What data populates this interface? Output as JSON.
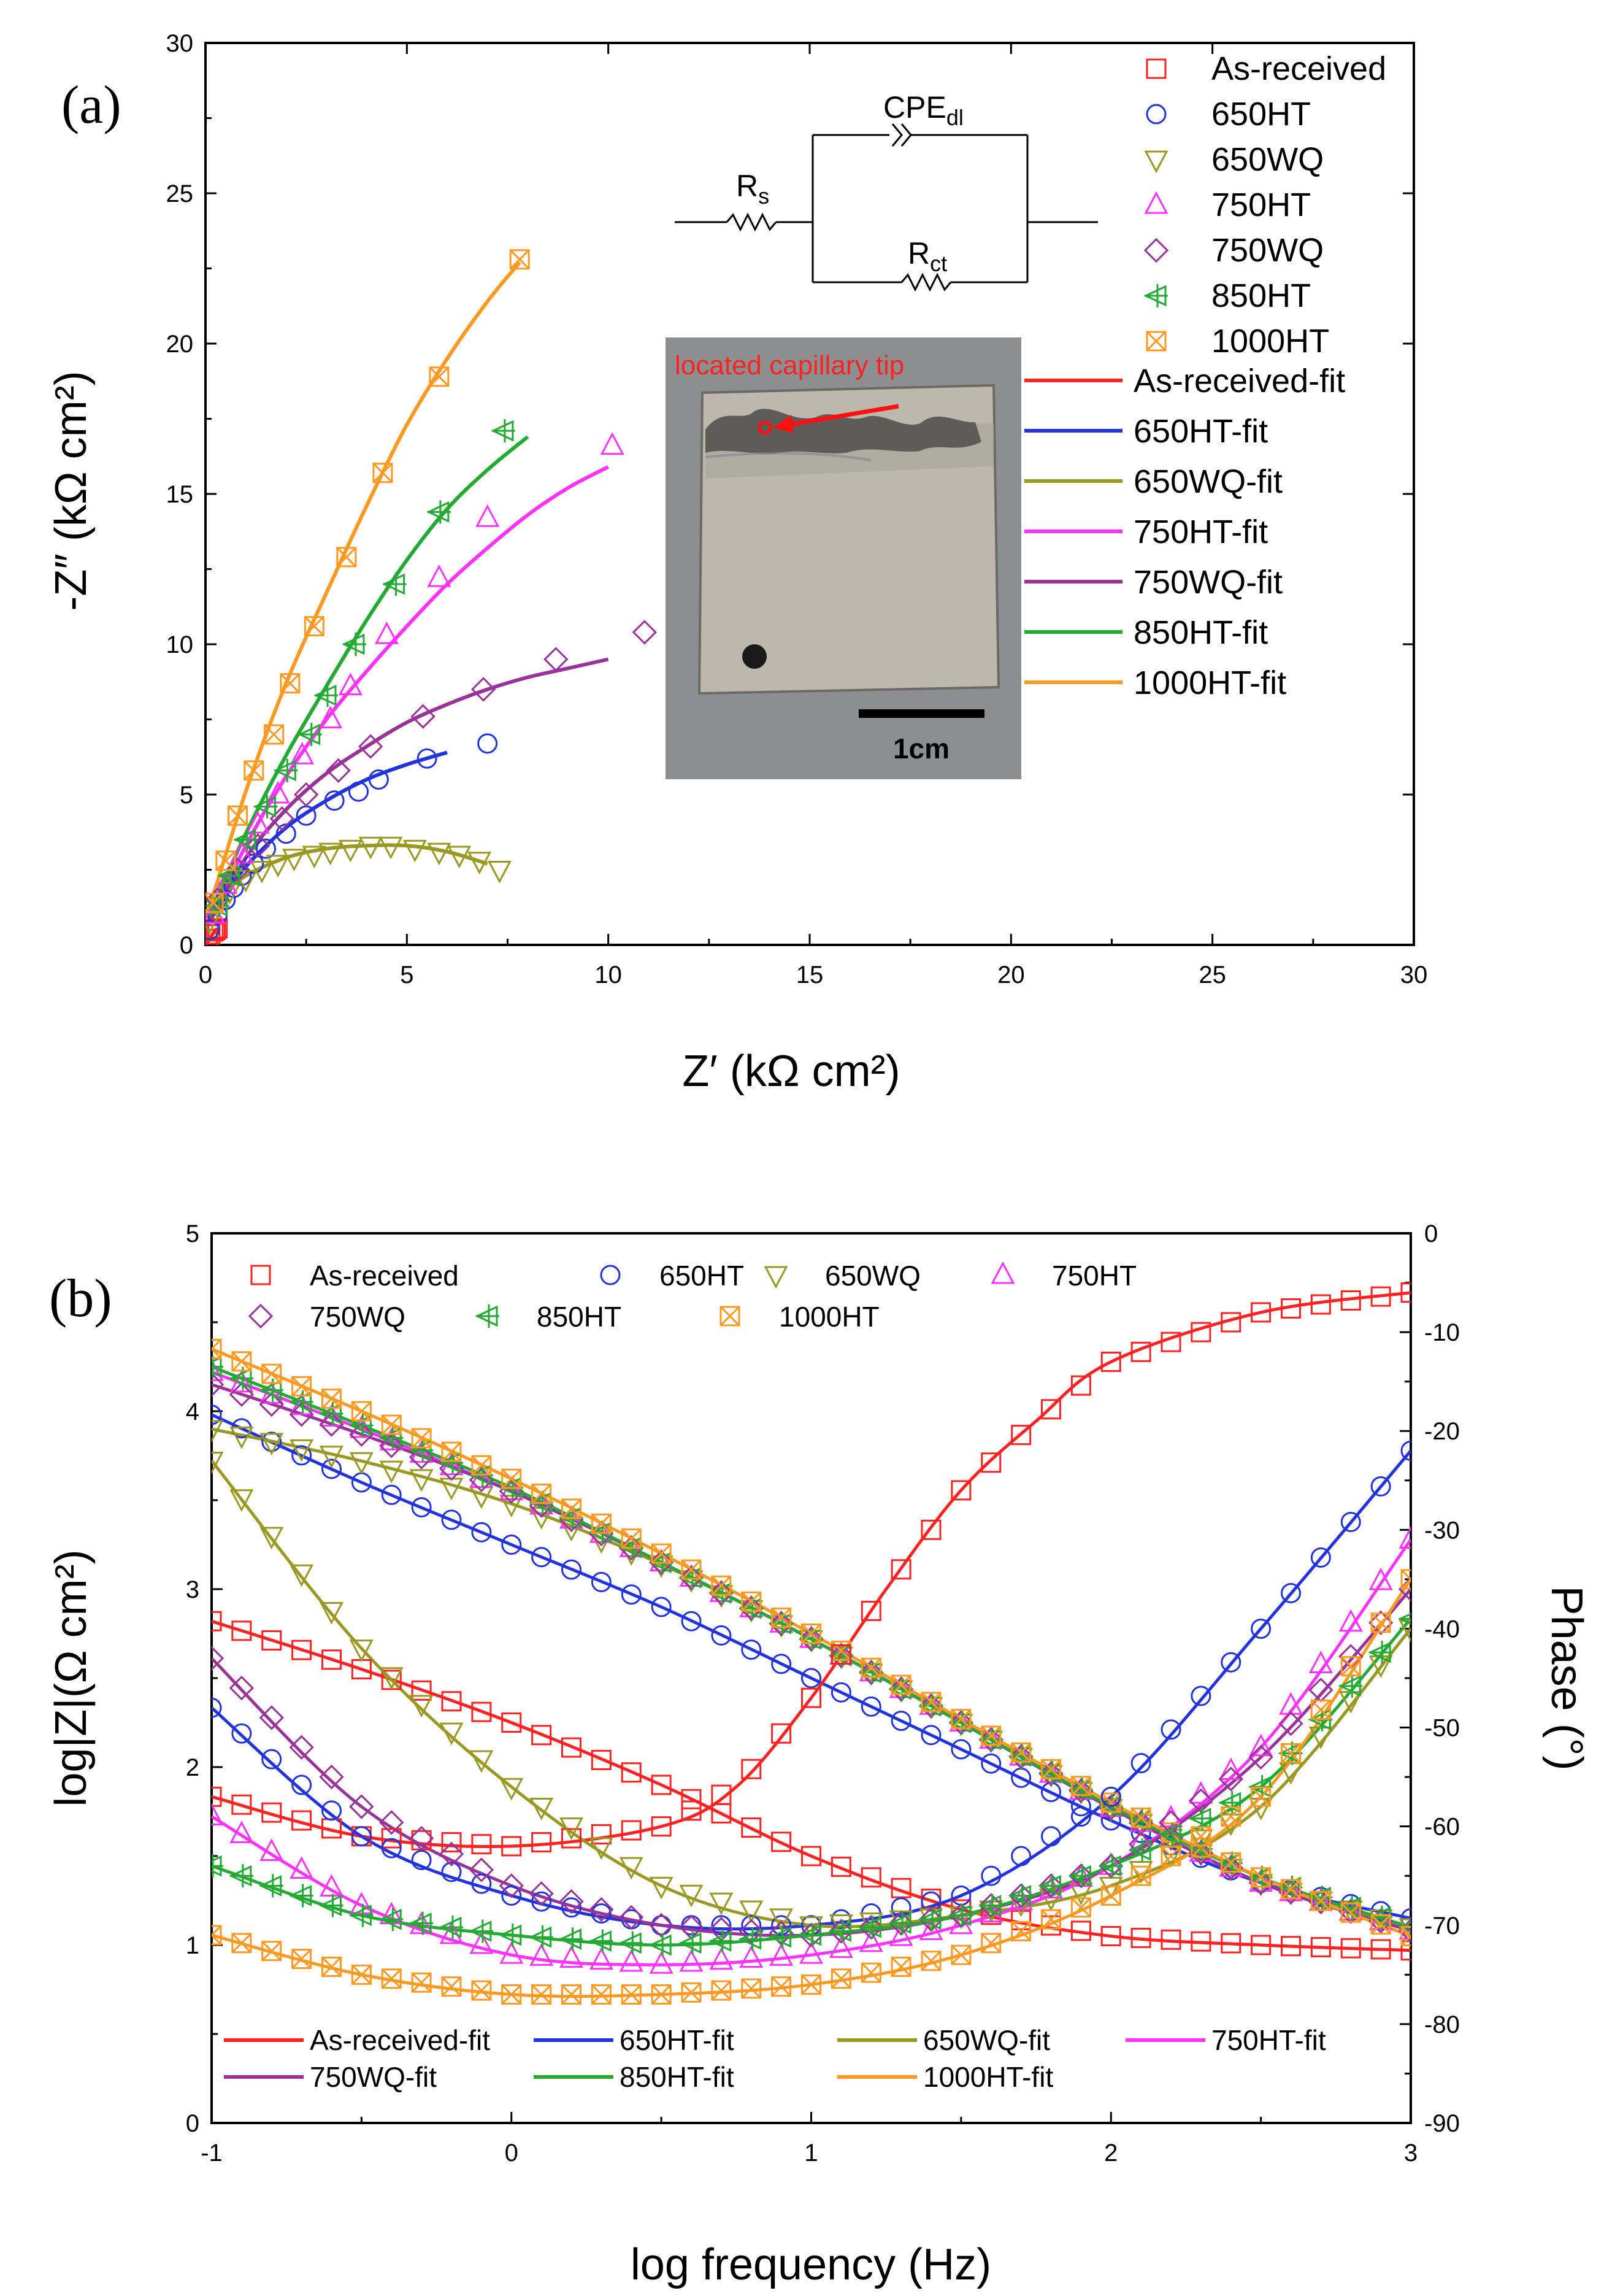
{
  "colors": {
    "As-received": "#ff2222",
    "650HT": "#2233dd",
    "650WQ": "#999922",
    "750HT": "#ff33ff",
    "750WQ": "#993399",
    "850HT": "#22aa33",
    "1000HT": "#ff9922"
  },
  "chart_data": [
    {
      "type": "scatter",
      "panel_label": "(a)",
      "title": "",
      "xlabel": "Z′ (kΩ cm²)",
      "ylabel": "-Z″ (kΩ cm²)",
      "xlim": [
        0,
        30
      ],
      "ylim": [
        0,
        30
      ],
      "xticks": [
        "0",
        "5",
        "10",
        "15",
        "20",
        "25",
        "30"
      ],
      "yticks": [
        "0",
        "5",
        "10",
        "15",
        "20",
        "25",
        "30"
      ],
      "legend_markers": [
        "As-received",
        "650HT",
        "650WQ",
        "750HT",
        "750WQ",
        "850HT",
        "1000HT"
      ],
      "legend_fits": [
        "As-received-fit",
        "650HT-fit",
        "650WQ-fit",
        "750HT-fit",
        "750WQ-fit",
        "850HT-fit",
        "1000HT-fit"
      ],
      "circuit_labels": {
        "rs_main": "R",
        "rs_sub": "s",
        "cpe_main": "CPE",
        "cpe_sub": "dl",
        "rct_main": "R",
        "rct_sub": "ct"
      },
      "inset_annotation": "located capillary tip",
      "inset_scalebar": "1cm",
      "series": [
        {
          "name": "As-received",
          "marker": "square",
          "x": [
            0.05,
            0.12,
            0.2,
            0.25,
            0.3
          ],
          "y": [
            0.2,
            0.35,
            0.45,
            0.5,
            0.55
          ],
          "fit_x": [
            0.0,
            0.1,
            0.2,
            0.3
          ],
          "fit_y": [
            0.0,
            0.2,
            0.4,
            0.55
          ]
        },
        {
          "name": "650HT",
          "marker": "circle",
          "x": [
            0.1,
            0.3,
            0.5,
            0.7,
            0.9,
            1.2,
            1.5,
            2.0,
            2.5,
            3.2,
            3.8,
            4.3,
            5.5,
            7.0
          ],
          "y": [
            0.5,
            1.0,
            1.5,
            1.9,
            2.3,
            2.7,
            3.2,
            3.7,
            4.3,
            4.8,
            5.1,
            5.5,
            6.2,
            6.7
          ],
          "fit_x": [
            0,
            0.5,
            1,
            2,
            3,
            4,
            5,
            6
          ],
          "fit_y": [
            0.6,
            1.6,
            2.6,
            3.9,
            4.8,
            5.5,
            6.0,
            6.4
          ]
        },
        {
          "name": "650WQ",
          "marker": "triangle-down",
          "x": [
            0.1,
            0.3,
            0.6,
            1.0,
            1.4,
            1.8,
            2.2,
            2.7,
            3.1,
            3.6,
            4.1,
            4.6,
            5.2,
            5.8,
            6.3,
            6.8,
            7.3
          ],
          "y": [
            0.8,
            1.3,
            1.8,
            2.2,
            2.5,
            2.7,
            2.9,
            3.0,
            3.1,
            3.2,
            3.3,
            3.3,
            3.2,
            3.1,
            3.0,
            2.8,
            2.5
          ],
          "fit_x": [
            0,
            0.5,
            1,
            2,
            3,
            4,
            5,
            6,
            7
          ],
          "fit_y": [
            0.6,
            1.7,
            2.3,
            2.9,
            3.2,
            3.3,
            3.3,
            3.1,
            2.7
          ]
        },
        {
          "name": "750HT",
          "marker": "triangle-up",
          "x": [
            0.2,
            0.5,
            0.9,
            1.3,
            1.8,
            2.4,
            3.1,
            3.6,
            4.5,
            5.8,
            7.0,
            10.1
          ],
          "y": [
            1.0,
            2.0,
            3.0,
            4.0,
            5.0,
            6.3,
            7.5,
            8.6,
            10.3,
            12.2,
            14.2,
            16.6
          ],
          "fit_x": [
            0,
            1,
            2,
            3,
            4,
            5,
            6,
            7,
            8,
            9,
            10
          ],
          "fit_y": [
            0.5,
            3.3,
            5.6,
            7.5,
            9.1,
            10.6,
            12.0,
            13.2,
            14.3,
            15.2,
            15.9
          ]
        },
        {
          "name": "750WQ",
          "marker": "diamond",
          "x": [
            0.3,
            0.8,
            1.3,
            1.9,
            2.5,
            3.3,
            4.1,
            5.4,
            6.9,
            8.7,
            10.9
          ],
          "y": [
            1.5,
            2.5,
            3.3,
            4.2,
            5.0,
            5.8,
            6.6,
            7.6,
            8.5,
            9.5,
            10.4
          ],
          "fit_x": [
            0,
            1,
            2,
            3,
            4,
            5,
            6,
            7,
            8,
            9,
            10
          ],
          "fit_y": [
            0.6,
            2.9,
            4.5,
            5.7,
            6.6,
            7.4,
            8.0,
            8.5,
            8.9,
            9.2,
            9.5
          ]
        },
        {
          "name": "850HT",
          "marker": "triangle-left-cross",
          "x": [
            0.3,
            0.6,
            1.0,
            1.5,
            2.0,
            2.6,
            3.0,
            3.7,
            4.7,
            5.8,
            7.4
          ],
          "y": [
            1.3,
            2.3,
            3.5,
            4.6,
            5.8,
            7.0,
            8.3,
            10.0,
            12.0,
            14.4,
            17.1
          ],
          "fit_x": [
            0,
            1,
            2,
            3,
            4,
            5,
            6,
            7,
            8
          ],
          "fit_y": [
            0.7,
            3.7,
            6.3,
            8.6,
            10.8,
            12.8,
            14.5,
            15.8,
            16.9
          ]
        },
        {
          "name": "1000HT",
          "marker": "square-x",
          "x": [
            0.2,
            0.5,
            0.8,
            1.2,
            1.7,
            2.1,
            2.7,
            3.5,
            4.4,
            5.8,
            7.8
          ],
          "y": [
            1.4,
            2.8,
            4.3,
            5.8,
            7.0,
            8.7,
            10.6,
            12.9,
            15.7,
            18.9,
            22.8
          ],
          "fit_x": [
            0,
            1,
            2,
            3,
            4,
            5,
            6,
            7,
            7.8
          ],
          "fit_y": [
            0.8,
            5.1,
            8.7,
            11.7,
            14.6,
            17.3,
            19.5,
            21.4,
            22.7
          ]
        }
      ]
    },
    {
      "type": "line",
      "panel_label": "(b)",
      "title": "",
      "xlabel": "log frequency (Hz)",
      "ylabel": "log|Z|(Ω cm²)",
      "ylabel_right": "Phase (°)",
      "xlim": [
        -1,
        3
      ],
      "ylim": [
        0,
        5
      ],
      "ylim_right": [
        -90,
        0
      ],
      "xticks": [
        "-1",
        "0",
        "1",
        "2",
        "3"
      ],
      "yticks": [
        "0",
        "1",
        "2",
        "3",
        "4",
        "5"
      ],
      "yticks_right": [
        "0",
        "-10",
        "-20",
        "-30",
        "-40",
        "-50",
        "-60",
        "-70",
        "-80",
        "-90"
      ],
      "legend_markers": [
        "As-received",
        "650HT",
        "650WQ",
        "750HT",
        "750WQ",
        "850HT",
        "1000HT"
      ],
      "legend_fits": [
        "As-received-fit",
        "650HT-fit",
        "650WQ-fit",
        "750HT-fit",
        "750WQ-fit",
        "850HT-fit",
        "1000HT-fit"
      ],
      "series_magnitude": [
        {
          "name": "As-received",
          "logf": [
            -1,
            -0.5,
            0,
            0.5,
            1,
            1.5,
            2,
            2.5,
            3
          ],
          "logZ": [
            2.82,
            2.55,
            2.25,
            1.9,
            1.5,
            1.2,
            1.05,
            1.0,
            0.97
          ]
        },
        {
          "name": "650HT",
          "logf": [
            -1,
            -0.5,
            0,
            0.5,
            1,
            1.5,
            2,
            2.5,
            3
          ],
          "logZ": [
            3.98,
            3.6,
            3.25,
            2.9,
            2.5,
            2.1,
            1.7,
            1.35,
            1.15
          ]
        },
        {
          "name": "650WQ",
          "logf": [
            -1,
            -0.5,
            0,
            0.5,
            1,
            1.5,
            2,
            2.5,
            3
          ],
          "logZ": [
            3.9,
            3.72,
            3.48,
            3.14,
            2.72,
            2.25,
            1.77,
            1.35,
            1.1
          ]
        },
        {
          "name": "750HT",
          "logf": [
            -1,
            -0.5,
            0,
            0.5,
            1,
            1.5,
            2,
            2.5,
            3
          ],
          "logZ": [
            4.22,
            3.9,
            3.55,
            3.15,
            2.72,
            2.25,
            1.77,
            1.35,
            1.08
          ]
        },
        {
          "name": "750WQ",
          "logf": [
            -1,
            -0.5,
            0,
            0.5,
            1,
            1.5,
            2,
            2.5,
            3
          ],
          "logZ": [
            4.15,
            3.87,
            3.55,
            3.15,
            2.72,
            2.25,
            1.77,
            1.35,
            1.08
          ]
        },
        {
          "name": "850HT",
          "logf": [
            -1,
            -0.5,
            0,
            0.5,
            1,
            1.5,
            2,
            2.5,
            3
          ],
          "logZ": [
            4.25,
            3.92,
            3.57,
            3.15,
            2.72,
            2.25,
            1.78,
            1.38,
            1.1
          ]
        },
        {
          "name": "1000HT",
          "logf": [
            -1,
            -0.5,
            0,
            0.5,
            1,
            1.5,
            2,
            2.5,
            3
          ],
          "logZ": [
            4.35,
            4.0,
            3.62,
            3.2,
            2.75,
            2.27,
            1.8,
            1.38,
            1.05
          ]
        }
      ],
      "series_phase": [
        {
          "name": "As-received",
          "logf": [
            -1,
            -0.5,
            0,
            0.5,
            0.75,
            1,
            1.25,
            1.5,
            1.75,
            2,
            2.5,
            3
          ],
          "phase": [
            -57,
            -61,
            -62,
            -60,
            -56,
            -47,
            -36,
            -26,
            -19,
            -13,
            -8,
            -6
          ]
        },
        {
          "name": "650HT",
          "logf": [
            -1,
            -0.5,
            0,
            0.5,
            1,
            1.5,
            2,
            2.5,
            3
          ],
          "phase": [
            -48,
            -61,
            -67,
            -70,
            -70,
            -67,
            -57,
            -40,
            -22
          ]
        },
        {
          "name": "650WQ",
          "logf": [
            -1,
            -0.5,
            0,
            0.5,
            1,
            1.5,
            2,
            2.5,
            3
          ],
          "phase": [
            -23,
            -42,
            -56,
            -66,
            -70,
            -69,
            -66,
            -58,
            -40
          ]
        },
        {
          "name": "750HT",
          "logf": [
            -1,
            -0.5,
            0,
            0.5,
            1,
            1.5,
            2,
            2.5,
            3
          ],
          "phase": [
            -59,
            -68,
            -73,
            -74,
            -73,
            -70,
            -64,
            -52,
            -31
          ]
        },
        {
          "name": "750WQ",
          "logf": [
            -1,
            -0.5,
            0,
            0.5,
            1,
            1.5,
            2,
            2.5,
            3
          ],
          "phase": [
            -43,
            -58,
            -66,
            -70,
            -71,
            -69,
            -64,
            -53,
            -36
          ]
        },
        {
          "name": "850HT",
          "logf": [
            -1,
            -0.5,
            0,
            0.5,
            1,
            1.5,
            2,
            2.5,
            3
          ],
          "phase": [
            -64,
            -69,
            -71,
            -72,
            -71,
            -69,
            -64,
            -56,
            -39
          ]
        },
        {
          "name": "1000HT",
          "logf": [
            -1,
            -0.5,
            0,
            0.5,
            1,
            1.5,
            2,
            2.5,
            3
          ],
          "phase": [
            -71,
            -75,
            -77,
            -77,
            -76,
            -73,
            -67,
            -57,
            -35
          ]
        }
      ]
    }
  ]
}
